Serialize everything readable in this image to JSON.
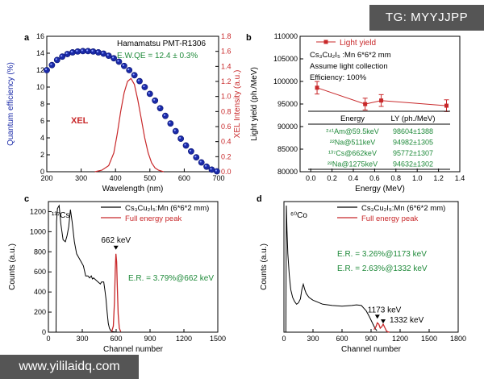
{
  "watermarks": {
    "top_right": "TG: MYYJJPP",
    "bottom_left": "www.yililaidq.com"
  },
  "colors": {
    "blue": "#1a2aa8",
    "red": "#c8282a",
    "green": "#1f8a3a",
    "axis": "#000000"
  },
  "chart_data": [
    {
      "panel": "a",
      "type": "line",
      "xlabel": "Wavelength (nm)",
      "ylabel": "Quantum efficiency (%)",
      "y2label": "XEL Intensity (a.u.)",
      "xlim": [
        200,
        700
      ],
      "ylim": [
        0,
        16
      ],
      "y2lim": [
        0,
        1.8
      ],
      "xticks": [
        200,
        300,
        400,
        500,
        600,
        700
      ],
      "yticks": [
        0,
        2,
        4,
        6,
        8,
        10,
        12,
        14,
        16
      ],
      "y2ticks": [
        "0.0",
        "0.2",
        "0.4",
        "0.6",
        "0.8",
        "1.0",
        "1.2",
        "1.4",
        "1.6",
        "1.8"
      ],
      "annotations": [
        "Hamamatsu PMT-R1306",
        "E.W.QE = 12.4 ± 0.3%",
        "XEL"
      ],
      "series": [
        {
          "marker": "sphere",
          "axis": "left",
          "x": [
            200,
            215,
            230,
            245,
            260,
            275,
            290,
            305,
            320,
            335,
            350,
            365,
            380,
            395,
            410,
            425,
            440,
            455,
            470,
            485,
            500,
            515,
            530,
            545,
            560,
            575,
            590,
            605,
            620,
            635,
            650,
            665,
            680,
            695
          ],
          "y": [
            12.0,
            12.6,
            13.2,
            13.6,
            13.9,
            14.1,
            14.2,
            14.25,
            14.25,
            14.2,
            14.1,
            13.95,
            13.7,
            13.4,
            13.0,
            12.5,
            12.0,
            11.4,
            10.7,
            10.0,
            9.2,
            8.4,
            7.5,
            6.6,
            5.7,
            4.8,
            3.9,
            3.1,
            2.4,
            1.7,
            1.1,
            0.6,
            0.25,
            0.05
          ]
        },
        {
          "axis": "right",
          "x": [
            340,
            360,
            380,
            395,
            405,
            415,
            425,
            435,
            445,
            455,
            465,
            475,
            485,
            495,
            505,
            515,
            525,
            540
          ],
          "y": [
            0.0,
            0.02,
            0.08,
            0.25,
            0.5,
            0.8,
            1.05,
            1.2,
            1.24,
            1.16,
            0.95,
            0.7,
            0.45,
            0.25,
            0.12,
            0.05,
            0.02,
            0.0
          ]
        }
      ]
    },
    {
      "panel": "b",
      "type": "line",
      "xlabel": "Energy (MeV)",
      "ylabel": "Light yield (ph./MeV)",
      "xlim": [
        -0.1,
        1.4
      ],
      "ylim": [
        80000,
        110000
      ],
      "xticks": [
        "0.0",
        "0.2",
        "0.4",
        "0.6",
        "0.8",
        "1.0",
        "1.2",
        "1.4"
      ],
      "yticks": [
        80000,
        85000,
        90000,
        95000,
        100000,
        105000,
        110000
      ],
      "legend": [
        "Light yield"
      ],
      "annotations": [
        "Cs₃Cu₂I₅ :Mn 6*6*2 mm",
        "Assume light collection",
        "Efficiency: 100%"
      ],
      "series": [
        {
          "name": "Light yield",
          "x": [
            0.0595,
            0.511,
            0.662,
            1.275
          ],
          "y": [
            98604,
            94982,
            95772,
            94632
          ],
          "err": [
            1388,
            1305,
            1307,
            1302
          ]
        }
      ],
      "table": {
        "columns": [
          "Energy",
          "LY (ph./MeV)"
        ],
        "rows": [
          [
            "²⁴¹Am@59.5keV",
            "98604±1388"
          ],
          [
            "²²Na@511keV",
            "94982±1305"
          ],
          [
            "¹³⁷Cs@662keV",
            "95772±1307"
          ],
          [
            "²²Na@1275keV",
            "94632±1302"
          ]
        ]
      }
    },
    {
      "panel": "c",
      "type": "line",
      "xlabel": "Channel number",
      "ylabel": "Counts (a.u.)",
      "xlim": [
        0,
        1500
      ],
      "ylim": [
        0,
        1300
      ],
      "xticks": [
        0,
        300,
        600,
        900,
        1200,
        1500
      ],
      "yticks": [
        0,
        200,
        400,
        600,
        800,
        1000,
        1200
      ],
      "legend": [
        "Cs₃Cu₂I₅:Mn (6*6*2 mm)",
        "Full energy peak"
      ],
      "annotations": [
        "¹³⁷Cs",
        "662 keV",
        "E.R. = 3.79%@662 keV"
      ],
      "series": [
        {
          "name": "Cs₃Cu₂I₅:Mn (6*6*2 mm)",
          "x": [
            68,
            72,
            80,
            95,
            110,
            130,
            140,
            150,
            165,
            180,
            195,
            210,
            230,
            250,
            270,
            290,
            310,
            330,
            350,
            365,
            380,
            390,
            400,
            420,
            440,
            460,
            470,
            480,
            490,
            500,
            510,
            520,
            530,
            540,
            550,
            560,
            570,
            585,
            600
          ],
          "y": [
            0,
            1100,
            1230,
            1260,
            1080,
            920,
            910,
            900,
            960,
            1050,
            1220,
            1100,
            900,
            780,
            740,
            700,
            660,
            560,
            560,
            540,
            560,
            530,
            540,
            520,
            500,
            480,
            500,
            500,
            500,
            420,
            330,
            200,
            90,
            40,
            20,
            10,
            5,
            3,
            0
          ]
        },
        {
          "name": "Full energy peak",
          "x": [
            560,
            575,
            585,
            592,
            598,
            604,
            610,
            618,
            628,
            640
          ],
          "y": [
            5,
            60,
            300,
            620,
            780,
            700,
            460,
            180,
            40,
            5
          ]
        }
      ]
    },
    {
      "panel": "d",
      "type": "line",
      "xlabel": "Channel number",
      "ylabel": "Counts (a.u.)",
      "xlim": [
        0,
        1800
      ],
      "ylim": [
        0,
        9800
      ],
      "xticks": [
        0,
        300,
        600,
        900,
        1200,
        1500,
        1800
      ],
      "yticks": [],
      "legend": [
        "Cs₃Cu₂I₅:Mn (6*6*2 mm)",
        "Full energy peak"
      ],
      "annotations": [
        "⁶⁰Co",
        "E.R. = 3.26%@1173 keV",
        "E.R. = 2.63%@1332 keV",
        "1173 keV",
        "1332 keV"
      ],
      "series": [
        {
          "name": "Cs₃Cu₂I₅:Mn (6*6*2 mm)",
          "x": [
            20,
            25,
            32,
            40,
            55,
            70,
            90,
            110,
            130,
            150,
            170,
            185,
            200,
            215,
            230,
            260,
            300,
            400,
            500,
            600,
            700,
            750,
            800,
            850,
            880,
            900,
            920,
            940,
            960
          ],
          "y": [
            0,
            9500,
            7600,
            5900,
            4300,
            3200,
            2600,
            2300,
            2100,
            2200,
            2500,
            3200,
            3600,
            3200,
            2900,
            2600,
            2400,
            2100,
            2000,
            1950,
            2000,
            2050,
            2000,
            1600,
            1200,
            900,
            600,
            300,
            100
          ]
        },
        {
          "name": "Full energy peak",
          "x": [
            930,
            950,
            965,
            980,
            995,
            1010,
            1025,
            1045,
            1060,
            1075,
            1090
          ],
          "y": [
            200,
            400,
            700,
            600,
            300,
            400,
            600,
            300,
            80,
            20,
            0
          ]
        }
      ]
    }
  ]
}
